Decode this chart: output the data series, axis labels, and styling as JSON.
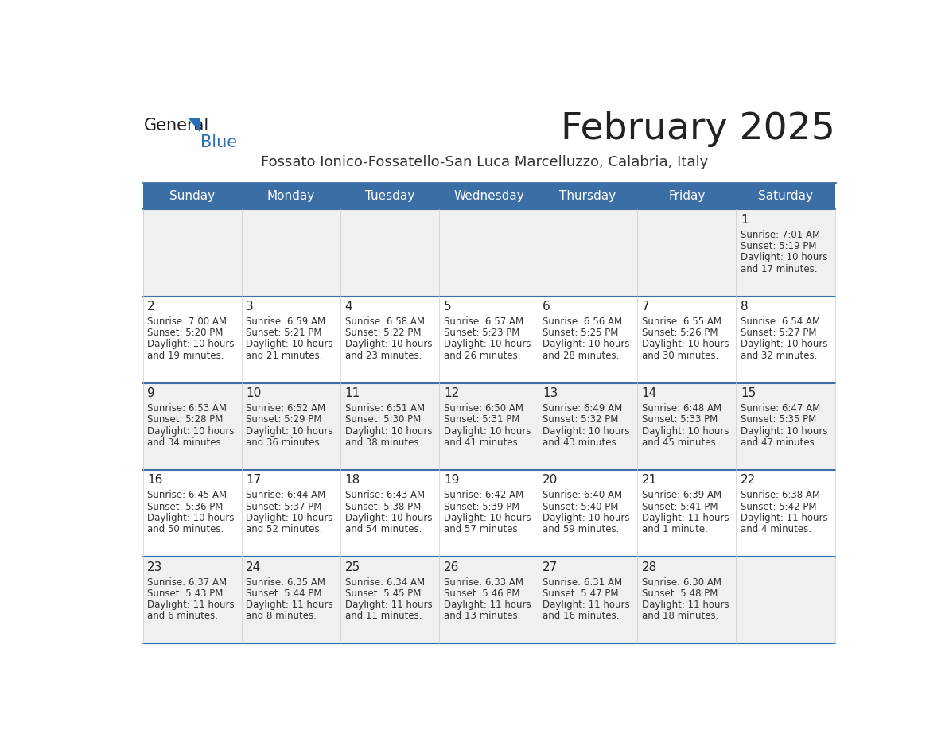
{
  "title": "February 2025",
  "subtitle": "Fossato Ionico-Fossatello-San Luca Marcelluzzo, Calabria, Italy",
  "header_bg": "#3A6EA5",
  "header_text": "#FFFFFF",
  "row_bg_odd": "#F0F0F0",
  "row_bg_even": "#FFFFFF",
  "day_headers": [
    "Sunday",
    "Monday",
    "Tuesday",
    "Wednesday",
    "Thursday",
    "Friday",
    "Saturday"
  ],
  "separator_color": "#3A6EA5",
  "title_color": "#222222",
  "subtitle_color": "#333333",
  "cell_text_color": "#333333",
  "day_num_color": "#222222",
  "days": [
    {
      "day": 1,
      "col": 6,
      "row": 0,
      "sunrise": "7:01 AM",
      "sunset": "5:19 PM",
      "daylight_line1": "Daylight: 10 hours",
      "daylight_line2": "and 17 minutes."
    },
    {
      "day": 2,
      "col": 0,
      "row": 1,
      "sunrise": "7:00 AM",
      "sunset": "5:20 PM",
      "daylight_line1": "Daylight: 10 hours",
      "daylight_line2": "and 19 minutes."
    },
    {
      "day": 3,
      "col": 1,
      "row": 1,
      "sunrise": "6:59 AM",
      "sunset": "5:21 PM",
      "daylight_line1": "Daylight: 10 hours",
      "daylight_line2": "and 21 minutes."
    },
    {
      "day": 4,
      "col": 2,
      "row": 1,
      "sunrise": "6:58 AM",
      "sunset": "5:22 PM",
      "daylight_line1": "Daylight: 10 hours",
      "daylight_line2": "and 23 minutes."
    },
    {
      "day": 5,
      "col": 3,
      "row": 1,
      "sunrise": "6:57 AM",
      "sunset": "5:23 PM",
      "daylight_line1": "Daylight: 10 hours",
      "daylight_line2": "and 26 minutes."
    },
    {
      "day": 6,
      "col": 4,
      "row": 1,
      "sunrise": "6:56 AM",
      "sunset": "5:25 PM",
      "daylight_line1": "Daylight: 10 hours",
      "daylight_line2": "and 28 minutes."
    },
    {
      "day": 7,
      "col": 5,
      "row": 1,
      "sunrise": "6:55 AM",
      "sunset": "5:26 PM",
      "daylight_line1": "Daylight: 10 hours",
      "daylight_line2": "and 30 minutes."
    },
    {
      "day": 8,
      "col": 6,
      "row": 1,
      "sunrise": "6:54 AM",
      "sunset": "5:27 PM",
      "daylight_line1": "Daylight: 10 hours",
      "daylight_line2": "and 32 minutes."
    },
    {
      "day": 9,
      "col": 0,
      "row": 2,
      "sunrise": "6:53 AM",
      "sunset": "5:28 PM",
      "daylight_line1": "Daylight: 10 hours",
      "daylight_line2": "and 34 minutes."
    },
    {
      "day": 10,
      "col": 1,
      "row": 2,
      "sunrise": "6:52 AM",
      "sunset": "5:29 PM",
      "daylight_line1": "Daylight: 10 hours",
      "daylight_line2": "and 36 minutes."
    },
    {
      "day": 11,
      "col": 2,
      "row": 2,
      "sunrise": "6:51 AM",
      "sunset": "5:30 PM",
      "daylight_line1": "Daylight: 10 hours",
      "daylight_line2": "and 38 minutes."
    },
    {
      "day": 12,
      "col": 3,
      "row": 2,
      "sunrise": "6:50 AM",
      "sunset": "5:31 PM",
      "daylight_line1": "Daylight: 10 hours",
      "daylight_line2": "and 41 minutes."
    },
    {
      "day": 13,
      "col": 4,
      "row": 2,
      "sunrise": "6:49 AM",
      "sunset": "5:32 PM",
      "daylight_line1": "Daylight: 10 hours",
      "daylight_line2": "and 43 minutes."
    },
    {
      "day": 14,
      "col": 5,
      "row": 2,
      "sunrise": "6:48 AM",
      "sunset": "5:33 PM",
      "daylight_line1": "Daylight: 10 hours",
      "daylight_line2": "and 45 minutes."
    },
    {
      "day": 15,
      "col": 6,
      "row": 2,
      "sunrise": "6:47 AM",
      "sunset": "5:35 PM",
      "daylight_line1": "Daylight: 10 hours",
      "daylight_line2": "and 47 minutes."
    },
    {
      "day": 16,
      "col": 0,
      "row": 3,
      "sunrise": "6:45 AM",
      "sunset": "5:36 PM",
      "daylight_line1": "Daylight: 10 hours",
      "daylight_line2": "and 50 minutes."
    },
    {
      "day": 17,
      "col": 1,
      "row": 3,
      "sunrise": "6:44 AM",
      "sunset": "5:37 PM",
      "daylight_line1": "Daylight: 10 hours",
      "daylight_line2": "and 52 minutes."
    },
    {
      "day": 18,
      "col": 2,
      "row": 3,
      "sunrise": "6:43 AM",
      "sunset": "5:38 PM",
      "daylight_line1": "Daylight: 10 hours",
      "daylight_line2": "and 54 minutes."
    },
    {
      "day": 19,
      "col": 3,
      "row": 3,
      "sunrise": "6:42 AM",
      "sunset": "5:39 PM",
      "daylight_line1": "Daylight: 10 hours",
      "daylight_line2": "and 57 minutes."
    },
    {
      "day": 20,
      "col": 4,
      "row": 3,
      "sunrise": "6:40 AM",
      "sunset": "5:40 PM",
      "daylight_line1": "Daylight: 10 hours",
      "daylight_line2": "and 59 minutes."
    },
    {
      "day": 21,
      "col": 5,
      "row": 3,
      "sunrise": "6:39 AM",
      "sunset": "5:41 PM",
      "daylight_line1": "Daylight: 11 hours",
      "daylight_line2": "and 1 minute."
    },
    {
      "day": 22,
      "col": 6,
      "row": 3,
      "sunrise": "6:38 AM",
      "sunset": "5:42 PM",
      "daylight_line1": "Daylight: 11 hours",
      "daylight_line2": "and 4 minutes."
    },
    {
      "day": 23,
      "col": 0,
      "row": 4,
      "sunrise": "6:37 AM",
      "sunset": "5:43 PM",
      "daylight_line1": "Daylight: 11 hours",
      "daylight_line2": "and 6 minutes."
    },
    {
      "day": 24,
      "col": 1,
      "row": 4,
      "sunrise": "6:35 AM",
      "sunset": "5:44 PM",
      "daylight_line1": "Daylight: 11 hours",
      "daylight_line2": "and 8 minutes."
    },
    {
      "day": 25,
      "col": 2,
      "row": 4,
      "sunrise": "6:34 AM",
      "sunset": "5:45 PM",
      "daylight_line1": "Daylight: 11 hours",
      "daylight_line2": "and 11 minutes."
    },
    {
      "day": 26,
      "col": 3,
      "row": 4,
      "sunrise": "6:33 AM",
      "sunset": "5:46 PM",
      "daylight_line1": "Daylight: 11 hours",
      "daylight_line2": "and 13 minutes."
    },
    {
      "day": 27,
      "col": 4,
      "row": 4,
      "sunrise": "6:31 AM",
      "sunset": "5:47 PM",
      "daylight_line1": "Daylight: 11 hours",
      "daylight_line2": "and 16 minutes."
    },
    {
      "day": 28,
      "col": 5,
      "row": 4,
      "sunrise": "6:30 AM",
      "sunset": "5:48 PM",
      "daylight_line1": "Daylight: 11 hours",
      "daylight_line2": "and 18 minutes."
    }
  ]
}
